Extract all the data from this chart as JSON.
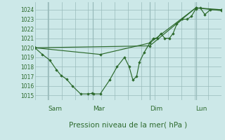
{
  "background_color": "#cce8e8",
  "grid_color": "#99bbbb",
  "line_color": "#2d6a2d",
  "marker_color": "#2d6a2d",
  "title": "Pression niveau de la mer( hPa )",
  "ylim": [
    1014.5,
    1024.8
  ],
  "yticks": [
    1015,
    1016,
    1017,
    1018,
    1019,
    1020,
    1021,
    1022,
    1023,
    1024
  ],
  "day_labels": [
    "Sam",
    "Mar",
    "Dim",
    "Lun"
  ],
  "day_positions": [
    0.07,
    0.31,
    0.615,
    0.862
  ],
  "series1": [
    [
      0.0,
      1020.0
    ],
    [
      0.04,
      1019.3
    ],
    [
      0.08,
      1018.7
    ],
    [
      0.115,
      1017.7
    ],
    [
      0.14,
      1017.1
    ],
    [
      0.17,
      1016.7
    ],
    [
      0.2,
      1016.0
    ],
    [
      0.245,
      1015.15
    ],
    [
      0.285,
      1015.15
    ],
    [
      0.305,
      1015.2
    ],
    [
      0.315,
      1015.15
    ],
    [
      0.35,
      1015.15
    ],
    [
      0.4,
      1016.6
    ],
    [
      0.44,
      1018.0
    ],
    [
      0.48,
      1019.0
    ],
    [
      0.505,
      1018.0
    ],
    [
      0.525,
      1016.6
    ],
    [
      0.545,
      1017.0
    ],
    [
      0.56,
      1018.5
    ],
    [
      0.585,
      1019.5
    ],
    [
      0.615,
      1020.5
    ],
    [
      0.635,
      1021.0
    ],
    [
      0.655,
      1021.0
    ],
    [
      0.675,
      1021.5
    ],
    [
      0.695,
      1021.0
    ],
    [
      0.72,
      1021.0
    ],
    [
      0.74,
      1021.5
    ],
    [
      0.76,
      1022.5
    ],
    [
      0.79,
      1023.0
    ],
    [
      0.815,
      1023.0
    ],
    [
      0.838,
      1023.3
    ],
    [
      0.862,
      1024.1
    ],
    [
      0.885,
      1024.2
    ],
    [
      0.91,
      1023.5
    ],
    [
      0.94,
      1024.0
    ],
    [
      1.0,
      1024.0
    ]
  ],
  "series2": [
    [
      0.0,
      1020.0
    ],
    [
      0.615,
      1020.2
    ],
    [
      0.862,
      1024.2
    ],
    [
      1.0,
      1024.0
    ]
  ],
  "series3": [
    [
      0.0,
      1020.0
    ],
    [
      0.35,
      1019.3
    ],
    [
      0.615,
      1020.5
    ],
    [
      0.862,
      1024.2
    ],
    [
      1.0,
      1023.9
    ]
  ],
  "vline_positions": [
    0.07,
    0.31,
    0.615,
    0.862
  ]
}
